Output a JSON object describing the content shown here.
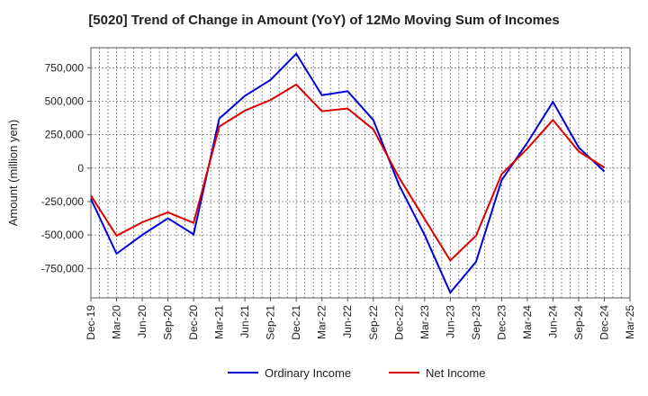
{
  "chart_data": {
    "type": "line",
    "title": "[5020]  Trend of Change in Amount (YoY) of 12Mo Moving Sum of Incomes",
    "xlabel": "",
    "ylabel": "Amount (million yen)",
    "ylim": [
      -970000,
      900000
    ],
    "yticks": [
      750000,
      500000,
      250000,
      0,
      -250000,
      -500000,
      -750000
    ],
    "ytick_labels": [
      "750,000",
      "500,000",
      "250,000",
      "0",
      "-250,000",
      "-500,000",
      "-750,000"
    ],
    "categories": [
      "Dec-19",
      "Mar-20",
      "Jun-20",
      "Sep-20",
      "Dec-20",
      "Mar-21",
      "Jun-21",
      "Sep-21",
      "Dec-21",
      "Mar-22",
      "Jun-22",
      "Sep-22",
      "Dec-22",
      "Mar-23",
      "Jun-23",
      "Sep-23",
      "Dec-23",
      "Mar-24",
      "Jun-24",
      "Sep-24",
      "Dec-24",
      "Mar-25"
    ],
    "grid": true,
    "legend_position": "bottom",
    "series": [
      {
        "name": "Ordinary Income",
        "color": "#0000dd",
        "values": [
          -230000,
          -640000,
          -500000,
          -375000,
          -495000,
          370000,
          540000,
          660000,
          855000,
          545000,
          575000,
          360000,
          -125000,
          -500000,
          -930000,
          -700000,
          -90000,
          190000,
          495000,
          155000,
          -25000,
          null
        ]
      },
      {
        "name": "Net Income",
        "color": "#dd0000",
        "values": [
          -205000,
          -505000,
          -405000,
          -330000,
          -410000,
          310000,
          430000,
          510000,
          625000,
          425000,
          445000,
          290000,
          -70000,
          -380000,
          -690000,
          -505000,
          -45000,
          145000,
          360000,
          125000,
          5000,
          null
        ]
      }
    ]
  }
}
